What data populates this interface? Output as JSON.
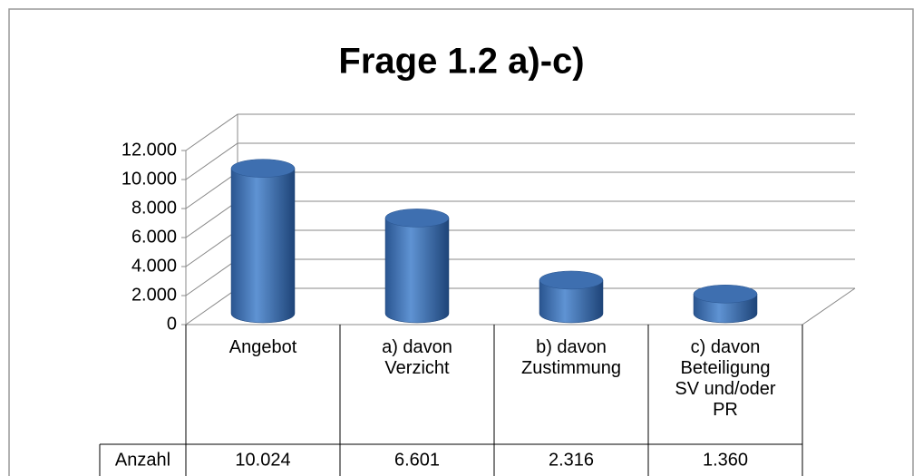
{
  "chart_data": {
    "type": "bar3d",
    "title": "Frage 1.2 a)-c)",
    "categories": [
      "Angebot",
      "a) davon Verzicht",
      "b) davon Zustimmung",
      "c) davon Beteiligung SV und/oder PR"
    ],
    "series": [
      {
        "name": "Anzahl",
        "color": "#4f81bd",
        "values": [
          10024,
          6601,
          2316,
          1360
        ],
        "value_labels": [
          "10.024",
          "6.601",
          "2.316",
          "1.360"
        ]
      }
    ],
    "ylim": [
      0,
      12000
    ],
    "yticks": [
      0,
      {
        "value": 2000,
        "label": "2.000"
      },
      {
        "value": 4000,
        "label": "4.000"
      },
      {
        "value": 6000,
        "label": "6.000"
      },
      {
        "value": 8000,
        "label": "8.000"
      },
      {
        "value": 10000,
        "label": "10.000"
      },
      {
        "value": 12000,
        "label": "12.000"
      }
    ],
    "grid": true
  }
}
